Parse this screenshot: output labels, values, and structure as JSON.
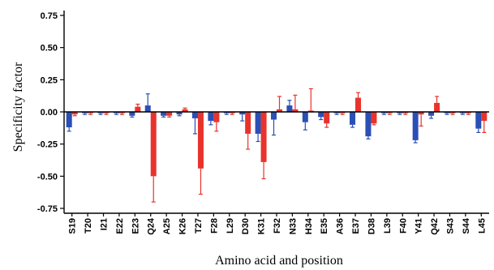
{
  "chart_data": {
    "type": "bar",
    "title": "",
    "xlabel": "Amino acid and position",
    "ylabel": "Specificity factor",
    "ylim": [
      -0.8,
      0.8
    ],
    "yticks": [
      0.75,
      0.5,
      0.25,
      0.0,
      -0.25,
      -0.5,
      -0.75
    ],
    "ytick_labels": [
      "0.75",
      "0.50",
      "0.25",
      "0.00",
      "-0.25",
      "-0.50",
      "-0.75"
    ],
    "grid": false,
    "legend": "none",
    "categories": [
      "S19",
      "T20",
      "I21",
      "E22",
      "E23",
      "Q24",
      "A25",
      "K26",
      "T27",
      "F28",
      "L29",
      "D30",
      "K31",
      "F32",
      "N33",
      "H34",
      "E35",
      "A36",
      "E37",
      "D38",
      "L39",
      "F40",
      "Y41",
      "Q42",
      "S43",
      "S44",
      "L45"
    ],
    "series": [
      {
        "color": "#2a4fb5",
        "values": [
          -0.12,
          -0.01,
          -0.01,
          -0.01,
          -0.03,
          0.05,
          -0.03,
          -0.02,
          -0.05,
          -0.07,
          -0.01,
          -0.02,
          -0.17,
          -0.06,
          0.05,
          -0.08,
          -0.04,
          -0.01,
          -0.1,
          -0.19,
          -0.01,
          -0.01,
          -0.22,
          -0.03,
          -0.01,
          -0.01,
          -0.13
        ],
        "errors": [
          0.03,
          0.01,
          0.01,
          0.01,
          0.01,
          0.09,
          0.01,
          0.01,
          0.12,
          0.03,
          0.01,
          0.05,
          0.06,
          0.12,
          0.04,
          0.06,
          0.02,
          0.01,
          0.02,
          0.02,
          0.01,
          0.01,
          0.02,
          0.02,
          0.01,
          0.01,
          0.03
        ]
      },
      {
        "color": "#e8332d",
        "values": [
          -0.02,
          -0.01,
          -0.01,
          -0.01,
          0.04,
          -0.5,
          -0.03,
          0.02,
          -0.44,
          -0.08,
          -0.01,
          -0.17,
          -0.39,
          0.02,
          0.02,
          0.01,
          -0.09,
          -0.01,
          0.11,
          -0.09,
          -0.01,
          -0.01,
          -0.02,
          0.07,
          -0.01,
          -0.01,
          -0.07
        ]
      }
    ],
    "red_errors": [
      0.01,
      0.01,
      0.01,
      0.01,
      0.02,
      0.2,
      0.01,
      0.01,
      0.2,
      0.07,
      0.01,
      0.12,
      0.13,
      0.1,
      0.11,
      0.17,
      0.03,
      0.01,
      0.04,
      0.01,
      0.01,
      0.01,
      0.09,
      0.05,
      0.01,
      0.01,
      0.09
    ]
  }
}
